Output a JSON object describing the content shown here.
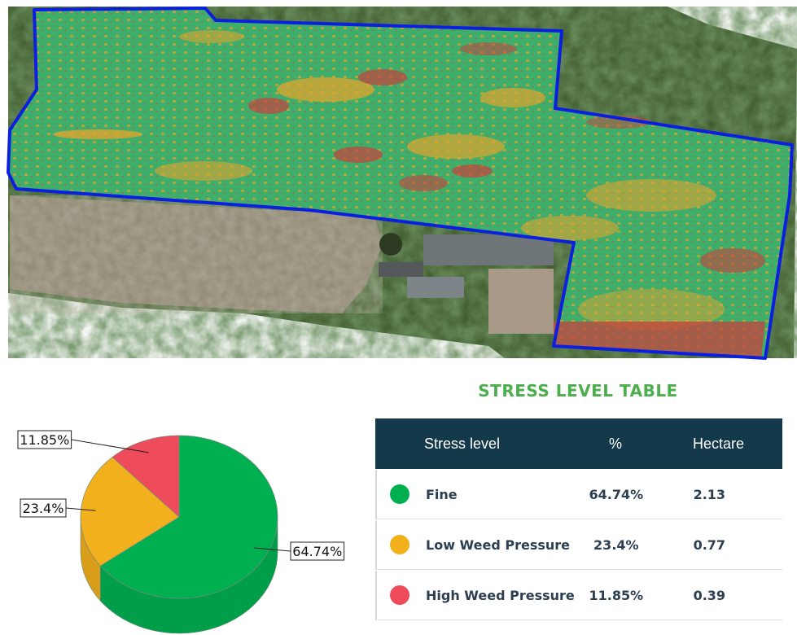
{
  "map": {
    "field_colors": {
      "fine": "#3fae6a",
      "low": "#e0a42e",
      "high": "#c7413e",
      "boundary": "#0b1fe0"
    }
  },
  "table": {
    "title": "STRESS LEVEL TABLE",
    "headers": [
      "Stress level",
      "%",
      "Hectare"
    ],
    "rows": [
      {
        "name": "Fine",
        "percent": "64.74%",
        "hectare": "2.13",
        "color": "#00b050"
      },
      {
        "name": "Low Weed Pressure",
        "percent": "23.4%",
        "hectare": "0.77",
        "color": "#f1b01c"
      },
      {
        "name": "High Weed Pressure",
        "percent": "11.85%",
        "hectare": "0.39",
        "color": "#ee4b5b"
      }
    ]
  },
  "chart_data": {
    "type": "pie",
    "categories": [
      "Fine",
      "Low Weed Pressure",
      "High Weed Pressure"
    ],
    "values": [
      64.74,
      23.4,
      11.85
    ],
    "data_labels": [
      "64.74%",
      "23.4%",
      "11.85%"
    ],
    "colors": [
      "#00b050",
      "#f1b01c",
      "#ee4b5b"
    ],
    "title": ""
  }
}
